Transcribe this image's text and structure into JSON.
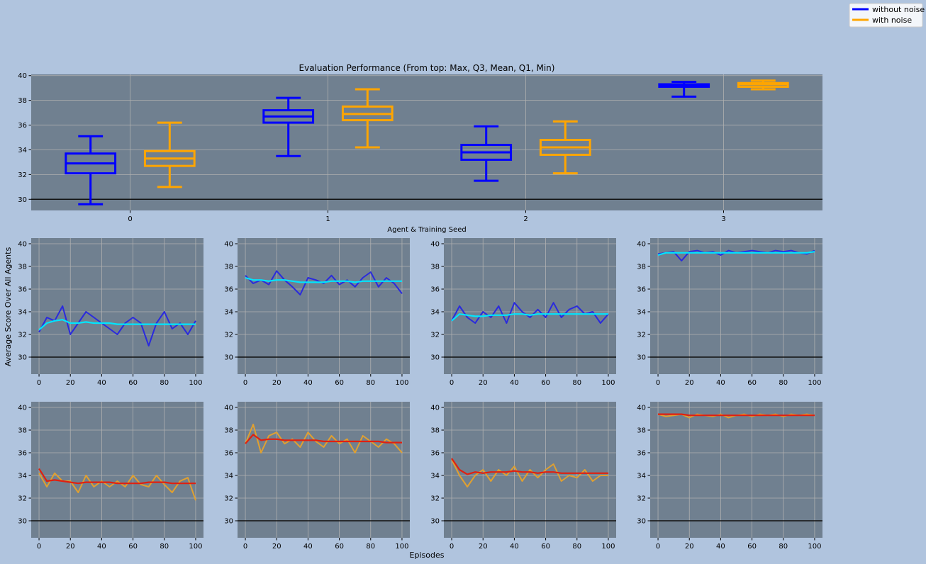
{
  "colors": {
    "figure_bg": "#b0c4de",
    "axes_bg": "#708090",
    "grid": "#b0b0b0",
    "reference_line": "#111111",
    "without_noise": "#0000ff",
    "with_noise": "#ffa500",
    "raw_without_noise": "#2a2add",
    "avg_without_noise": "#00e5ff",
    "raw_with_noise": "#e0a030",
    "avg_with_noise": "#e02010"
  },
  "legend": {
    "placement": "top-right",
    "items": [
      {
        "label": "without noise",
        "color": "#0000ff"
      },
      {
        "label": "with noise",
        "color": "#ffa500"
      }
    ]
  },
  "labels": {
    "shared_ylabel": "Average Score Over All Agents",
    "shared_xlabel": "Episodes"
  },
  "chart_data": [
    {
      "type": "box",
      "title": "Evaluation Performance (From top: Max, Q3, Mean, Q1, Min)",
      "xlabel": "Agent & Training Seed",
      "ylabel": "",
      "categories": [
        "0",
        "1",
        "2",
        "3"
      ],
      "xlim": [
        -0.5,
        3.5
      ],
      "ylim": [
        29.1,
        40.1
      ],
      "yticks": [
        30,
        32,
        34,
        36,
        38,
        40
      ],
      "reference_line": 30,
      "grid": true,
      "series": [
        {
          "name": "without noise",
          "boxes": [
            {
              "max": 35.1,
              "q3": 33.7,
              "mean": 32.9,
              "q1": 32.1,
              "min": 29.6
            },
            {
              "max": 38.2,
              "q3": 37.2,
              "mean": 36.7,
              "q1": 36.2,
              "min": 33.5
            },
            {
              "max": 35.9,
              "q3": 34.4,
              "mean": 33.8,
              "q1": 33.2,
              "min": 31.5
            },
            {
              "max": 39.5,
              "q3": 39.3,
              "mean": 39.2,
              "q1": 39.1,
              "min": 38.3
            }
          ]
        },
        {
          "name": "with noise",
          "boxes": [
            {
              "max": 36.2,
              "q3": 33.9,
              "mean": 33.3,
              "q1": 32.7,
              "min": 31.0
            },
            {
              "max": 38.9,
              "q3": 37.5,
              "mean": 36.9,
              "q1": 36.4,
              "min": 34.2
            },
            {
              "max": 36.3,
              "q3": 34.8,
              "mean": 34.2,
              "q1": 33.6,
              "min": 32.1
            },
            {
              "max": 39.6,
              "q3": 39.4,
              "mean": 39.3,
              "q1": 39.1,
              "min": 38.9
            }
          ]
        }
      ]
    },
    {
      "type": "line",
      "seed": 0,
      "group": "without noise",
      "xlim": [
        -5,
        105
      ],
      "ylim": [
        28.5,
        40.5
      ],
      "xticks": [
        0,
        20,
        40,
        60,
        80,
        100
      ],
      "yticks": [
        30,
        32,
        34,
        36,
        38,
        40
      ],
      "reference_line": 30,
      "grid": true,
      "x": [
        0,
        5,
        10,
        15,
        20,
        25,
        30,
        35,
        40,
        45,
        50,
        55,
        60,
        65,
        70,
        75,
        80,
        85,
        90,
        95,
        100
      ],
      "series": [
        {
          "role": "raw",
          "values": [
            32.2,
            33.5,
            33.2,
            34.5,
            32.0,
            33.0,
            34.0,
            33.5,
            33.0,
            32.5,
            32.0,
            33.0,
            33.5,
            33.0,
            31.0,
            33.0,
            34.0,
            32.5,
            33.0,
            32.0,
            33.2
          ]
        },
        {
          "role": "average",
          "values": [
            32.4,
            33.0,
            33.2,
            33.3,
            33.0,
            33.0,
            33.1,
            33.0,
            33.0,
            33.0,
            32.9,
            32.9,
            32.9,
            32.9,
            32.9,
            32.9,
            32.9,
            32.9,
            32.9,
            32.9,
            32.9
          ]
        }
      ]
    },
    {
      "type": "line",
      "seed": 1,
      "group": "without noise",
      "xlim": [
        -5,
        105
      ],
      "ylim": [
        28.5,
        40.5
      ],
      "xticks": [
        0,
        20,
        40,
        60,
        80,
        100
      ],
      "yticks": [
        30,
        32,
        34,
        36,
        38,
        40
      ],
      "reference_line": 30,
      "grid": true,
      "x": [
        0,
        5,
        10,
        15,
        20,
        25,
        30,
        35,
        40,
        45,
        50,
        55,
        60,
        65,
        70,
        75,
        80,
        85,
        90,
        95,
        100
      ],
      "series": [
        {
          "role": "raw",
          "values": [
            37.2,
            36.5,
            36.8,
            36.4,
            37.6,
            36.8,
            36.2,
            35.5,
            37.0,
            36.8,
            36.5,
            37.2,
            36.4,
            36.8,
            36.2,
            37.0,
            37.5,
            36.2,
            37.0,
            36.5,
            35.6
          ]
        },
        {
          "role": "average",
          "values": [
            37.0,
            36.8,
            36.8,
            36.7,
            36.8,
            36.8,
            36.7,
            36.6,
            36.6,
            36.6,
            36.6,
            36.7,
            36.7,
            36.7,
            36.6,
            36.7,
            36.7,
            36.7,
            36.7,
            36.7,
            36.7
          ]
        }
      ]
    },
    {
      "type": "line",
      "seed": 2,
      "group": "without noise",
      "xlim": [
        -5,
        105
      ],
      "ylim": [
        28.5,
        40.5
      ],
      "xticks": [
        0,
        20,
        40,
        60,
        80,
        100
      ],
      "yticks": [
        30,
        32,
        34,
        36,
        38,
        40
      ],
      "reference_line": 30,
      "grid": true,
      "x": [
        0,
        5,
        10,
        15,
        20,
        25,
        30,
        35,
        40,
        45,
        50,
        55,
        60,
        65,
        70,
        75,
        80,
        85,
        90,
        95,
        100
      ],
      "series": [
        {
          "role": "raw",
          "values": [
            33.2,
            34.5,
            33.5,
            33.0,
            34.0,
            33.5,
            34.5,
            33.0,
            34.8,
            34.0,
            33.5,
            34.2,
            33.5,
            34.8,
            33.5,
            34.2,
            34.5,
            33.8,
            34.0,
            33.0,
            33.8
          ]
        },
        {
          "role": "average",
          "values": [
            33.2,
            33.8,
            33.7,
            33.6,
            33.6,
            33.7,
            33.7,
            33.7,
            33.8,
            33.8,
            33.7,
            33.8,
            33.8,
            33.8,
            33.8,
            33.8,
            33.8,
            33.8,
            33.8,
            33.8,
            33.8
          ]
        }
      ]
    },
    {
      "type": "line",
      "seed": 3,
      "group": "without noise",
      "xlim": [
        -5,
        105
      ],
      "ylim": [
        28.5,
        40.5
      ],
      "xticks": [
        0,
        20,
        40,
        60,
        80,
        100
      ],
      "yticks": [
        30,
        32,
        34,
        36,
        38,
        40
      ],
      "reference_line": 30,
      "grid": true,
      "x": [
        0,
        5,
        10,
        15,
        20,
        25,
        30,
        35,
        40,
        45,
        50,
        55,
        60,
        65,
        70,
        75,
        80,
        85,
        90,
        95,
        100
      ],
      "series": [
        {
          "role": "raw",
          "values": [
            39.1,
            39.2,
            39.3,
            38.5,
            39.3,
            39.4,
            39.2,
            39.3,
            39.0,
            39.4,
            39.2,
            39.3,
            39.4,
            39.3,
            39.2,
            39.4,
            39.3,
            39.4,
            39.2,
            39.1,
            39.4
          ]
        },
        {
          "role": "average",
          "values": [
            39.0,
            39.2,
            39.2,
            39.2,
            39.2,
            39.2,
            39.2,
            39.2,
            39.2,
            39.2,
            39.2,
            39.2,
            39.2,
            39.2,
            39.2,
            39.2,
            39.2,
            39.2,
            39.2,
            39.2,
            39.3
          ]
        }
      ]
    },
    {
      "type": "line",
      "seed": 0,
      "group": "with noise",
      "xlim": [
        -5,
        105
      ],
      "ylim": [
        28.5,
        40.5
      ],
      "xticks": [
        0,
        20,
        40,
        60,
        80,
        100
      ],
      "yticks": [
        30,
        32,
        34,
        36,
        38,
        40
      ],
      "reference_line": 30,
      "grid": true,
      "x": [
        0,
        5,
        10,
        15,
        20,
        25,
        30,
        35,
        40,
        45,
        50,
        55,
        60,
        65,
        70,
        75,
        80,
        85,
        90,
        95,
        100
      ],
      "series": [
        {
          "role": "raw",
          "values": [
            34.2,
            33.0,
            34.2,
            33.5,
            33.5,
            32.5,
            34.0,
            33.0,
            33.5,
            33.0,
            33.5,
            33.0,
            34.0,
            33.2,
            33.0,
            34.0,
            33.2,
            32.5,
            33.5,
            33.8,
            31.8
          ]
        },
        {
          "role": "average",
          "values": [
            34.6,
            33.5,
            33.6,
            33.5,
            33.4,
            33.3,
            33.4,
            33.4,
            33.4,
            33.4,
            33.3,
            33.3,
            33.3,
            33.3,
            33.4,
            33.4,
            33.4,
            33.3,
            33.3,
            33.3,
            33.3
          ]
        }
      ]
    },
    {
      "type": "line",
      "seed": 1,
      "group": "with noise",
      "xlim": [
        -5,
        105
      ],
      "ylim": [
        28.5,
        40.5
      ],
      "xticks": [
        0,
        20,
        40,
        60,
        80,
        100
      ],
      "yticks": [
        30,
        32,
        34,
        36,
        38,
        40
      ],
      "reference_line": 30,
      "grid": true,
      "x": [
        0,
        5,
        10,
        15,
        20,
        25,
        30,
        35,
        40,
        45,
        50,
        55,
        60,
        65,
        70,
        75,
        80,
        85,
        90,
        95,
        100
      ],
      "series": [
        {
          "role": "raw",
          "values": [
            36.8,
            38.5,
            36.0,
            37.5,
            37.8,
            36.8,
            37.2,
            36.5,
            37.8,
            37.0,
            36.5,
            37.5,
            36.8,
            37.2,
            36.0,
            37.5,
            37.0,
            36.5,
            37.2,
            36.8,
            36.0
          ]
        },
        {
          "role": "average",
          "values": [
            36.8,
            37.6,
            37.1,
            37.2,
            37.2,
            37.1,
            37.1,
            37.1,
            37.1,
            37.1,
            37.0,
            37.0,
            37.0,
            37.0,
            37.0,
            37.0,
            37.0,
            37.0,
            36.9,
            36.9,
            36.9
          ]
        }
      ]
    },
    {
      "type": "line",
      "seed": 2,
      "group": "with noise",
      "xlim": [
        -5,
        105
      ],
      "ylim": [
        28.5,
        40.5
      ],
      "xticks": [
        0,
        20,
        40,
        60,
        80,
        100
      ],
      "yticks": [
        30,
        32,
        34,
        36,
        38,
        40
      ],
      "reference_line": 30,
      "grid": true,
      "x": [
        0,
        5,
        10,
        15,
        20,
        25,
        30,
        35,
        40,
        45,
        50,
        55,
        60,
        65,
        70,
        75,
        80,
        85,
        90,
        95,
        100
      ],
      "series": [
        {
          "role": "raw",
          "values": [
            35.4,
            34.0,
            33.0,
            34.0,
            34.5,
            33.5,
            34.5,
            34.0,
            34.8,
            33.5,
            34.5,
            33.8,
            34.5,
            35.0,
            33.5,
            34.0,
            33.8,
            34.5,
            33.5,
            34.0,
            34.0
          ]
        },
        {
          "role": "average",
          "values": [
            35.5,
            34.5,
            34.1,
            34.3,
            34.2,
            34.3,
            34.3,
            34.3,
            34.4,
            34.3,
            34.3,
            34.2,
            34.3,
            34.3,
            34.2,
            34.2,
            34.2,
            34.2,
            34.2,
            34.2,
            34.2
          ]
        }
      ]
    },
    {
      "type": "line",
      "seed": 3,
      "group": "with noise",
      "xlim": [
        -5,
        105
      ],
      "ylim": [
        28.5,
        40.5
      ],
      "xticks": [
        0,
        20,
        40,
        60,
        80,
        100
      ],
      "yticks": [
        30,
        32,
        34,
        36,
        38,
        40
      ],
      "reference_line": 30,
      "grid": true,
      "x": [
        0,
        5,
        10,
        15,
        20,
        25,
        30,
        35,
        40,
        45,
        50,
        55,
        60,
        65,
        70,
        75,
        80,
        85,
        90,
        95,
        100
      ],
      "series": [
        {
          "role": "raw",
          "values": [
            39.4,
            39.2,
            39.3,
            39.4,
            39.1,
            39.4,
            39.3,
            39.2,
            39.4,
            39.1,
            39.3,
            39.4,
            39.2,
            39.4,
            39.3,
            39.4,
            39.2,
            39.4,
            39.3,
            39.4,
            39.3
          ]
        },
        {
          "role": "average",
          "values": [
            39.4,
            39.4,
            39.4,
            39.4,
            39.3,
            39.3,
            39.3,
            39.3,
            39.3,
            39.3,
            39.3,
            39.3,
            39.3,
            39.3,
            39.3,
            39.3,
            39.3,
            39.3,
            39.3,
            39.3,
            39.3
          ]
        }
      ]
    }
  ]
}
